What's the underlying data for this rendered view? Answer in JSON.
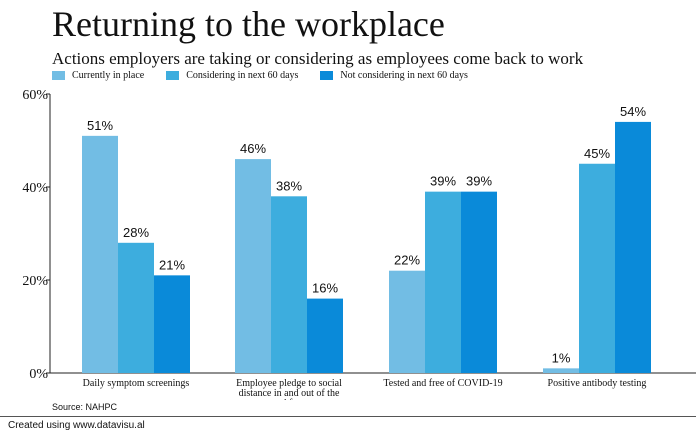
{
  "header": {
    "title": "Returning to the workplace",
    "subtitle": "Actions employers are taking or considering as employees come back to work"
  },
  "legend": [
    {
      "label": "Currently in place",
      "color": "#72bde4"
    },
    {
      "label": "Considering in next 60 days",
      "color": "#3dadde"
    },
    {
      "label": "Not considering in next 60 days",
      "color": "#0a8ad9"
    }
  ],
  "source": "Source: NAHPC",
  "footer": "Created using www.datavisu.al",
  "chart_data": {
    "type": "bar",
    "title": "Returning to the workplace",
    "subtitle": "Actions employers are taking or considering as employees come back to work",
    "categories": [
      [
        "Daily symptom screenings"
      ],
      [
        "Employee pledge to social",
        "distance in and out of the",
        "workforce"
      ],
      [
        "Tested and free of COVID-19"
      ],
      [
        "Positive antibody testing"
      ]
    ],
    "series": [
      {
        "name": "Currently in place",
        "color": "#72bde4",
        "values": [
          51,
          46,
          22,
          1
        ]
      },
      {
        "name": "Considering in next 60 days",
        "color": "#3dadde",
        "values": [
          28,
          38,
          39,
          45
        ]
      },
      {
        "name": "Not considering in next 60 days",
        "color": "#0a8ad9",
        "values": [
          21,
          16,
          39,
          54
        ]
      }
    ],
    "value_suffix": "%",
    "ylim": [
      0,
      60
    ],
    "yticks": [
      0,
      20,
      40,
      60
    ],
    "ytick_labels": [
      "0%",
      "20%",
      "40%",
      "60%"
    ],
    "xlabel": "",
    "ylabel": "",
    "grid": false,
    "legend_position": "top-left"
  }
}
